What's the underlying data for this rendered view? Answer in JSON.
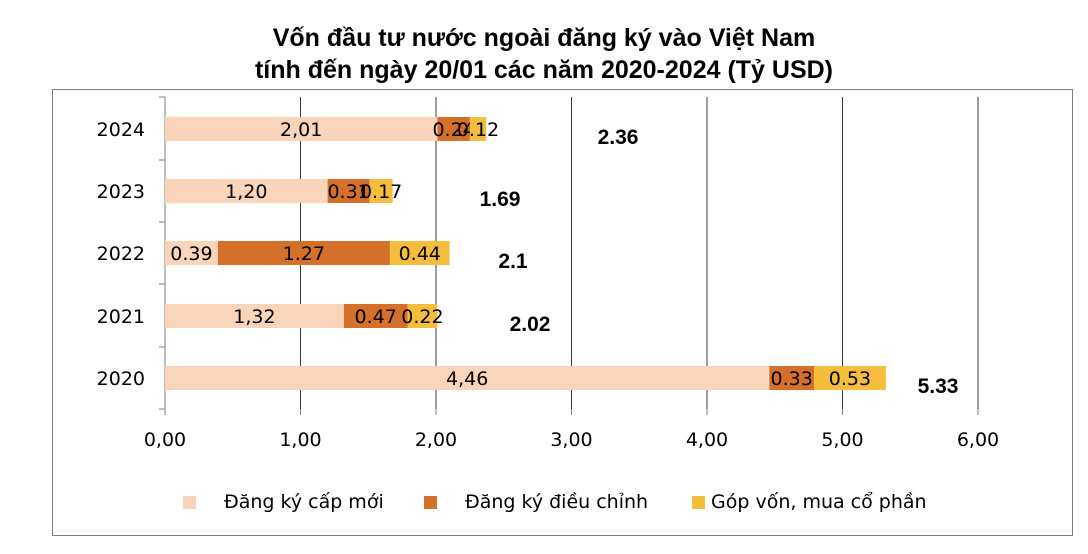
{
  "chart_data": {
    "type": "bar",
    "orientation": "horizontal",
    "stacked": true,
    "title_lines": [
      "Vốn đầu tư nước ngoài đăng ký vào Việt Nam",
      "tính đến ngày 20/01 các năm 2020-2024 (Tỷ USD)"
    ],
    "categories": [
      "2024",
      "2023",
      "2022",
      "2021",
      "2020"
    ],
    "series": [
      {
        "name": "Đăng ký cấp mới",
        "values": [
          2.01,
          1.2,
          0.39,
          1.32,
          4.46
        ],
        "labels": [
          "2,01",
          "1,20",
          "0.39",
          "1,32",
          "4,46"
        ],
        "color": "#F8D5BA"
      },
      {
        "name": "Đăng ký điều chỉnh",
        "values": [
          0.24,
          0.31,
          1.27,
          0.47,
          0.33
        ],
        "labels": [
          "0.24",
          "0.31",
          "1.27",
          "0.47",
          "0.33"
        ],
        "color": "#D5702A"
      },
      {
        "name": "Góp vốn, mua cổ phần",
        "values": [
          0.12,
          0.17,
          0.44,
          0.22,
          0.53
        ],
        "labels": [
          "0.12",
          "0.17",
          "0.44",
          "0.22",
          "0.53"
        ],
        "color": "#F4BE3C"
      }
    ],
    "totals": [
      "2.36",
      "1.69",
      "2.1",
      "2.02",
      "5.33"
    ],
    "xlim": [
      0,
      6
    ],
    "xticks": [
      "0,00",
      "1,00",
      "2,00",
      "3,00",
      "4,00",
      "5,00",
      "6,00"
    ],
    "grid": true,
    "legend_position": "bottom"
  }
}
